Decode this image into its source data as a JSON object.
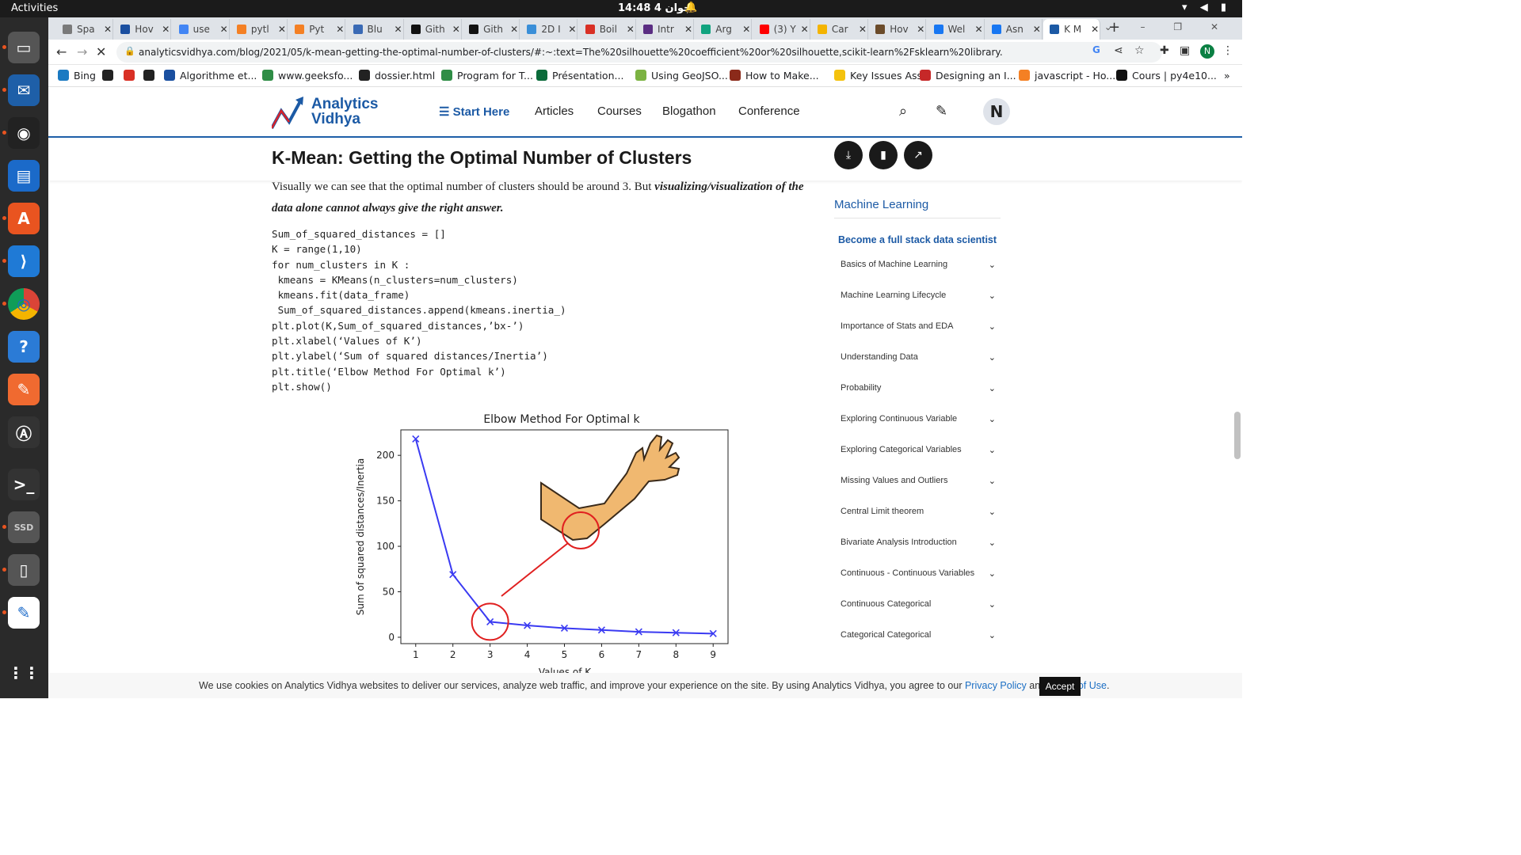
{
  "system": {
    "activities": "Activities",
    "clock": "14:48  4 جوان",
    "tray": "▾ ◀ ▮"
  },
  "dock": {
    "apps": [
      "files-icon",
      "thunderbird-icon",
      "rhythmbox-icon",
      "writer-icon",
      "app-center-icon",
      "vscode-icon",
      "chrome-icon",
      "help-icon",
      "drawing-icon",
      "software-updater-icon",
      "terminal-icon",
      "ssd-drive-icon",
      "archive-icon",
      "text-editor-icon",
      "show-apps-icon"
    ],
    "ssd_label": "SSD"
  },
  "tabs": [
    {
      "title": "Spa",
      "color": "#7a7a7a"
    },
    {
      "title": "Hov",
      "color": "#1a4fa0"
    },
    {
      "title": "use",
      "color": "#4285f4"
    },
    {
      "title": "pytl",
      "color": "#f48024"
    },
    {
      "title": "Pyt",
      "color": "#f48024"
    },
    {
      "title": "Blu",
      "color": "#3a6ab5"
    },
    {
      "title": "Gith",
      "color": "#111111"
    },
    {
      "title": "Gith",
      "color": "#111111"
    },
    {
      "title": "2D I",
      "color": "#3a8fd8"
    },
    {
      "title": "Boil",
      "color": "#d93025"
    },
    {
      "title": "Intr",
      "color": "#5a2d82"
    },
    {
      "title": "Arg",
      "color": "#10a37f"
    },
    {
      "title": "(3) Y",
      "color": "#ff0000"
    },
    {
      "title": "Car",
      "color": "#f4b400"
    },
    {
      "title": "Hov",
      "color": "#6b4b2a"
    },
    {
      "title": "Wel",
      "color": "#1877f2"
    },
    {
      "title": "Asn",
      "color": "#1877f2"
    },
    {
      "title": "K M",
      "color": "#1c5aa5"
    }
  ],
  "address": {
    "url": "analyticsvidhya.com/blog/2021/05/k-mean-getting-the-optimal-number-of-clusters/#:~:text=The%20silhouette%20coefficient%20or%20silhouette,scikit-learn%2Fsklearn%20library."
  },
  "bookmarks": [
    {
      "label": "Bing",
      "color": "#1b7ac2"
    },
    {
      "label": "",
      "color": "#222"
    },
    {
      "label": "",
      "color": "#d93025"
    },
    {
      "label": "",
      "color": "#222"
    },
    {
      "label": "Algorithme et...",
      "color": "#1a4fa0"
    },
    {
      "label": "www.geeksfo...",
      "color": "#2f8d46"
    },
    {
      "label": "dossier.html",
      "color": "#222"
    },
    {
      "label": "Program for T...",
      "color": "#2f8d46"
    },
    {
      "label": "Présentation...",
      "color": "#0b6b3a"
    },
    {
      "label": "Using GeoJSO...",
      "color": "#7cb342"
    },
    {
      "label": "How to Make...",
      "color": "#8b2a1a"
    },
    {
      "label": "Key Issues Ass...",
      "color": "#f4c20d"
    },
    {
      "label": "Designing an I...",
      "color": "#c62828"
    },
    {
      "label": "javascript - Ho...",
      "color": "#f48024"
    },
    {
      "label": "Cours | py4e10...",
      "color": "#111"
    }
  ],
  "site": {
    "logo_line1": "Analytics",
    "logo_line2": "Vidhya",
    "menu": [
      "Start Here",
      "Articles",
      "Courses",
      "Blogathon",
      "Conference"
    ],
    "avatar_initial": "N"
  },
  "article": {
    "title": "K-Mean: Getting the Optimal Number of Clusters",
    "para_plain": "Visually we can see that the optimal number of clusters should be around 3. But ",
    "para_emph": "visualizing/visualization of the data alone cannot always give the right answer.",
    "code": "Sum_of_squared_distances = []\nK = range(1,10)\nfor num_clusters in K :\n kmeans = KMeans(n_clusters=num_clusters)\n kmeans.fit(data_frame)\n Sum_of_squared_distances.append(kmeans.inertia_)\nplt.plot(K,Sum_of_squared_distances,’bx-’)\nplt.xlabel(‘Values of K’)\nplt.ylabel(‘Sum of squared distances/Inertia’)\nplt.title(‘Elbow Method For Optimal k’)\nplt.show()"
  },
  "chart_data": {
    "type": "line",
    "title": "Elbow Method For Optimal k",
    "xlabel": "Values of K",
    "ylabel": "Sum of squared distances/Inertia",
    "x": [
      1,
      2,
      3,
      4,
      5,
      6,
      7,
      8,
      9
    ],
    "y": [
      218,
      69,
      17,
      13,
      10,
      8,
      6,
      5,
      4
    ],
    "xlim": [
      0.6,
      9.4
    ],
    "ylim": [
      -7,
      228
    ],
    "yticks": [
      0,
      50,
      100,
      150,
      200
    ],
    "xticks": [
      1,
      2,
      3,
      4,
      5,
      6,
      7,
      8,
      9
    ],
    "marker": "x",
    "color": "#3a3af2",
    "annotation": "elbow at K=3 highlighted with red circle and an arm illustration",
    "grid": false
  },
  "sidebar": {
    "heading": "Machine Learning",
    "cta": "Become a full stack data scientist",
    "items": [
      "Basics of Machine Learning",
      "Machine Learning Lifecycle",
      "Importance of Stats and EDA",
      "Understanding Data",
      "Probability",
      "Exploring Continuous Variable",
      "Exploring Categorical Variables",
      "Missing Values and Outliers",
      "Central Limit theorem",
      "Bivariate Analysis Introduction",
      "Continuous - Continuous Variables",
      "Continuous Categorical",
      "Categorical Categorical"
    ]
  },
  "cookie": {
    "text": "We use cookies on Analytics Vidhya websites to deliver our services, analyze web traffic, and improve your experience on the site. By using Analytics Vidhya, you agree to our ",
    "privacy": "Privacy Policy",
    "and": " and ",
    "terms": "Terms of Use",
    "end": ".",
    "accept": "Accept"
  },
  "colors": {
    "brand": "#1c5aa5",
    "accent_red": "#d9232a"
  }
}
